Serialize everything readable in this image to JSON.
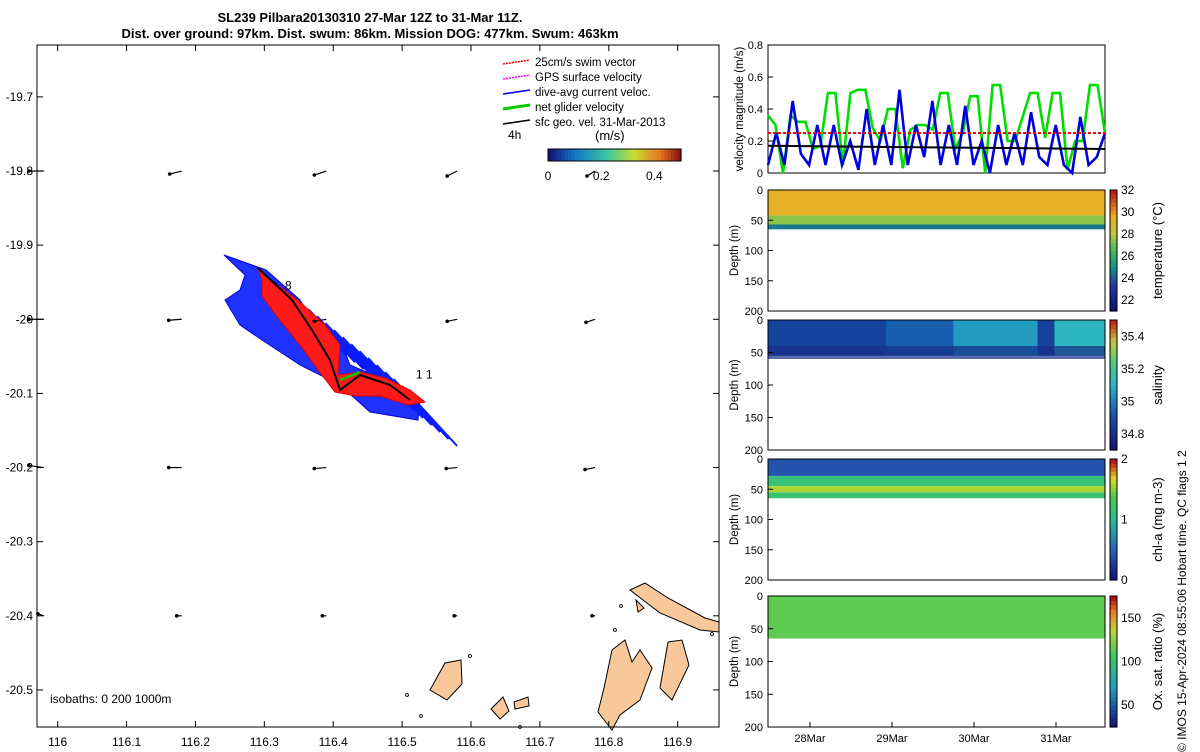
{
  "title_line1": "SL239 Pilbara20130310 27-Mar 12Z to 31-Mar 11Z.",
  "title_line2": "Dist. over ground: 97km. Dist. swum: 86km. Mission DOG: 477km. Swum: 463km",
  "credit": "© IMOS 15-Apr-2024 08:55:06 Hobart time. QC flags 1  2",
  "chart_data": [
    {
      "type": "map",
      "xlim": [
        115.97,
        116.96
      ],
      "ylim": [
        -20.55,
        -19.63
      ],
      "x_ticks": [
        "116",
        "116.1",
        "116.2",
        "116.3",
        "116.4",
        "116.5",
        "116.6",
        "116.7",
        "116.8",
        "116.9"
      ],
      "x_tick_values": [
        116,
        116.1,
        116.2,
        116.3,
        116.4,
        116.5,
        116.6,
        116.7,
        116.8,
        116.9
      ],
      "y_ticks": [
        "-19.7",
        "-19.8",
        "-19.9",
        "-20",
        "-20.1",
        "-20.2",
        "-20.3",
        "-20.4",
        "-20.5"
      ],
      "y_tick_values": [
        -19.7,
        -19.8,
        -19.9,
        -20.0,
        -20.1,
        -20.2,
        -20.3,
        -20.4,
        -20.5
      ],
      "legend": [
        {
          "label": "25cm/s swim vector",
          "color": "#ff0000"
        },
        {
          "label": "GPS surface velocity",
          "color": "#ff00ff"
        },
        {
          "label": "dive-avg current veloc.",
          "color": "#0000ff"
        },
        {
          "label": "net glider velocity",
          "color": "#00cc00"
        },
        {
          "label": "sfc geo. vel. 31-Mar-2013",
          "color": "#000000"
        }
      ],
      "legend_placement": "top-right",
      "duration_label": "4h",
      "colorbar": {
        "label": "(m/s)",
        "ticks": [
          "0",
          "0.2",
          "0.4"
        ],
        "range": [
          0,
          0.5
        ]
      },
      "isobath_label": "isobaths: 0   200  1000m",
      "track_labels": [
        "8",
        "1 1"
      ],
      "track_label_positions": [
        [
          116.33,
          -19.96
        ],
        [
          116.52,
          -20.08
        ]
      ],
      "track_start": [
        116.29,
        -19.93
      ],
      "track_end": [
        116.5,
        -20.09
      ],
      "geo_vectors": {
        "lons": [
          115.98,
          116.18,
          116.39,
          116.58,
          116.78
        ],
        "lats": [
          -19.8,
          -20.0,
          -20.2,
          -20.4
        ],
        "u": [
          [
            0.15,
            0.12,
            0.12,
            0.1,
            0.08
          ],
          [
            0.15,
            0.13,
            0.12,
            0.1,
            0.09
          ],
          [
            0.15,
            0.13,
            0.12,
            0.11,
            0.1
          ],
          [
            0.06,
            0.05,
            0.04,
            0.03,
            0.03
          ]
        ],
        "v": [
          [
            0.0,
            0.03,
            0.04,
            0.05,
            0.05
          ],
          [
            0.0,
            0.01,
            0.02,
            0.02,
            0.03
          ],
          [
            -0.02,
            0.0,
            0.01,
            0.01,
            0.02
          ],
          [
            -0.02,
            0.0,
            0.0,
            0.0,
            0.0
          ]
        ]
      }
    },
    {
      "type": "line",
      "ylabel": "velocity magnitude (m/s)",
      "y_ticks": [
        "0",
        "0.2",
        "0.4",
        "0.6",
        "0.8"
      ],
      "ylim": [
        0,
        0.8
      ],
      "series": [
        {
          "color": "#00dd00",
          "values": [
            0.36,
            0.3,
            0.0,
            0.36,
            0.32,
            0.32,
            0.15,
            0.17,
            0.5,
            0.5,
            0.05,
            0.5,
            0.52,
            0.52,
            0.28,
            0.2,
            0.4,
            0.4,
            0.03,
            0.27,
            0.3,
            0.3,
            0.27,
            0.5,
            0.5,
            0.15,
            0.25,
            0.48,
            0.48,
            0.0,
            0.55,
            0.55,
            0.2,
            0.2,
            0.35,
            0.5,
            0.5,
            0.22,
            0.5,
            0.5,
            0.02,
            0.2,
            0.2,
            0.55,
            0.55,
            0.25
          ]
        },
        {
          "color": "#0000dd",
          "values": [
            0.05,
            0.25,
            0.05,
            0.45,
            0.12,
            0.05,
            0.3,
            0.05,
            0.3,
            0.05,
            0.2,
            0.02,
            0.4,
            0.05,
            0.3,
            0.05,
            0.52,
            0.05,
            0.3,
            0.1,
            0.45,
            0.05,
            0.3,
            0.05,
            0.42,
            0.05,
            0.2,
            0.0,
            0.3,
            0.05,
            0.25,
            0.05,
            0.38,
            0.1,
            0.05,
            0.3,
            0.05,
            0.0,
            0.35,
            0.05,
            0.1,
            0.25
          ]
        },
        {
          "color": "#ff0000",
          "style": "dashed",
          "values": [
            0.25,
            0.25
          ]
        },
        {
          "color": "#000000",
          "values": [
            0.17,
            0.15
          ]
        }
      ]
    },
    {
      "type": "heatmap",
      "ylabel": "Depth (m)",
      "clabel": "temperature (°C)",
      "y_ticks": [
        "0",
        "50",
        "100",
        "150",
        "200"
      ],
      "ylim": [
        0,
        200
      ],
      "c_ticks": [
        "22",
        "24",
        "26",
        "28",
        "30",
        "32"
      ],
      "c_values": [
        22,
        24,
        26,
        28,
        30,
        32
      ],
      "clim": [
        21,
        32
      ],
      "layers": [
        {
          "from": 0,
          "to": 42,
          "value": 29.5
        },
        {
          "from": 42,
          "to": 57,
          "value": 27.5
        },
        {
          "from": 57,
          "to": 65,
          "value": 24.5
        }
      ],
      "colormap": "thermal"
    },
    {
      "type": "heatmap",
      "ylabel": "Depth (m)",
      "clabel": "salinity",
      "y_ticks": [
        "0",
        "50",
        "100",
        "150",
        "200"
      ],
      "ylim": [
        0,
        200
      ],
      "c_ticks": [
        "34.8",
        "35",
        "35.2",
        "35.4"
      ],
      "c_values": [
        34.8,
        35.0,
        35.2,
        35.4
      ],
      "clim": [
        34.7,
        35.5
      ],
      "segments": [
        {
          "until": 0.35,
          "value": 34.86
        },
        {
          "until": 0.55,
          "value": 34.93
        },
        {
          "until": 0.8,
          "value": 35.05
        },
        {
          "until": 0.85,
          "value": 34.85
        },
        {
          "until": 1.0,
          "value": 35.12
        }
      ],
      "colormap": "haline"
    },
    {
      "type": "heatmap",
      "ylabel": "Depth (m)",
      "clabel": "chl-a (mg m-3)",
      "y_ticks": [
        "0",
        "50",
        "100",
        "150",
        "200"
      ],
      "ylim": [
        0,
        200
      ],
      "c_ticks": [
        "0",
        "1",
        "2"
      ],
      "c_values": [
        0,
        1,
        2
      ],
      "clim": [
        0,
        2
      ],
      "layers": [
        {
          "from": 0,
          "to": 28,
          "value": 0.4
        },
        {
          "from": 28,
          "to": 45,
          "value": 1.15
        },
        {
          "from": 45,
          "to": 55,
          "value": 1.6
        },
        {
          "from": 55,
          "to": 65,
          "value": 1.2
        }
      ],
      "colormap": "algae"
    },
    {
      "type": "heatmap",
      "ylabel": "Depth (m)",
      "clabel": "Ox. sat. ratio (%)",
      "y_ticks": [
        "0",
        "50",
        "100",
        "150",
        "200"
      ],
      "ylim": [
        0,
        200
      ],
      "c_ticks": [
        "50",
        "100",
        "150"
      ],
      "c_values": [
        50,
        100,
        150
      ],
      "clim": [
        25,
        175
      ],
      "layers": [
        {
          "from": 0,
          "to": 65,
          "value": 115
        }
      ],
      "colormap": "oxy",
      "x_ticks": [
        "28Mar",
        "29Mar",
        "30Mar",
        "31Mar"
      ]
    }
  ]
}
